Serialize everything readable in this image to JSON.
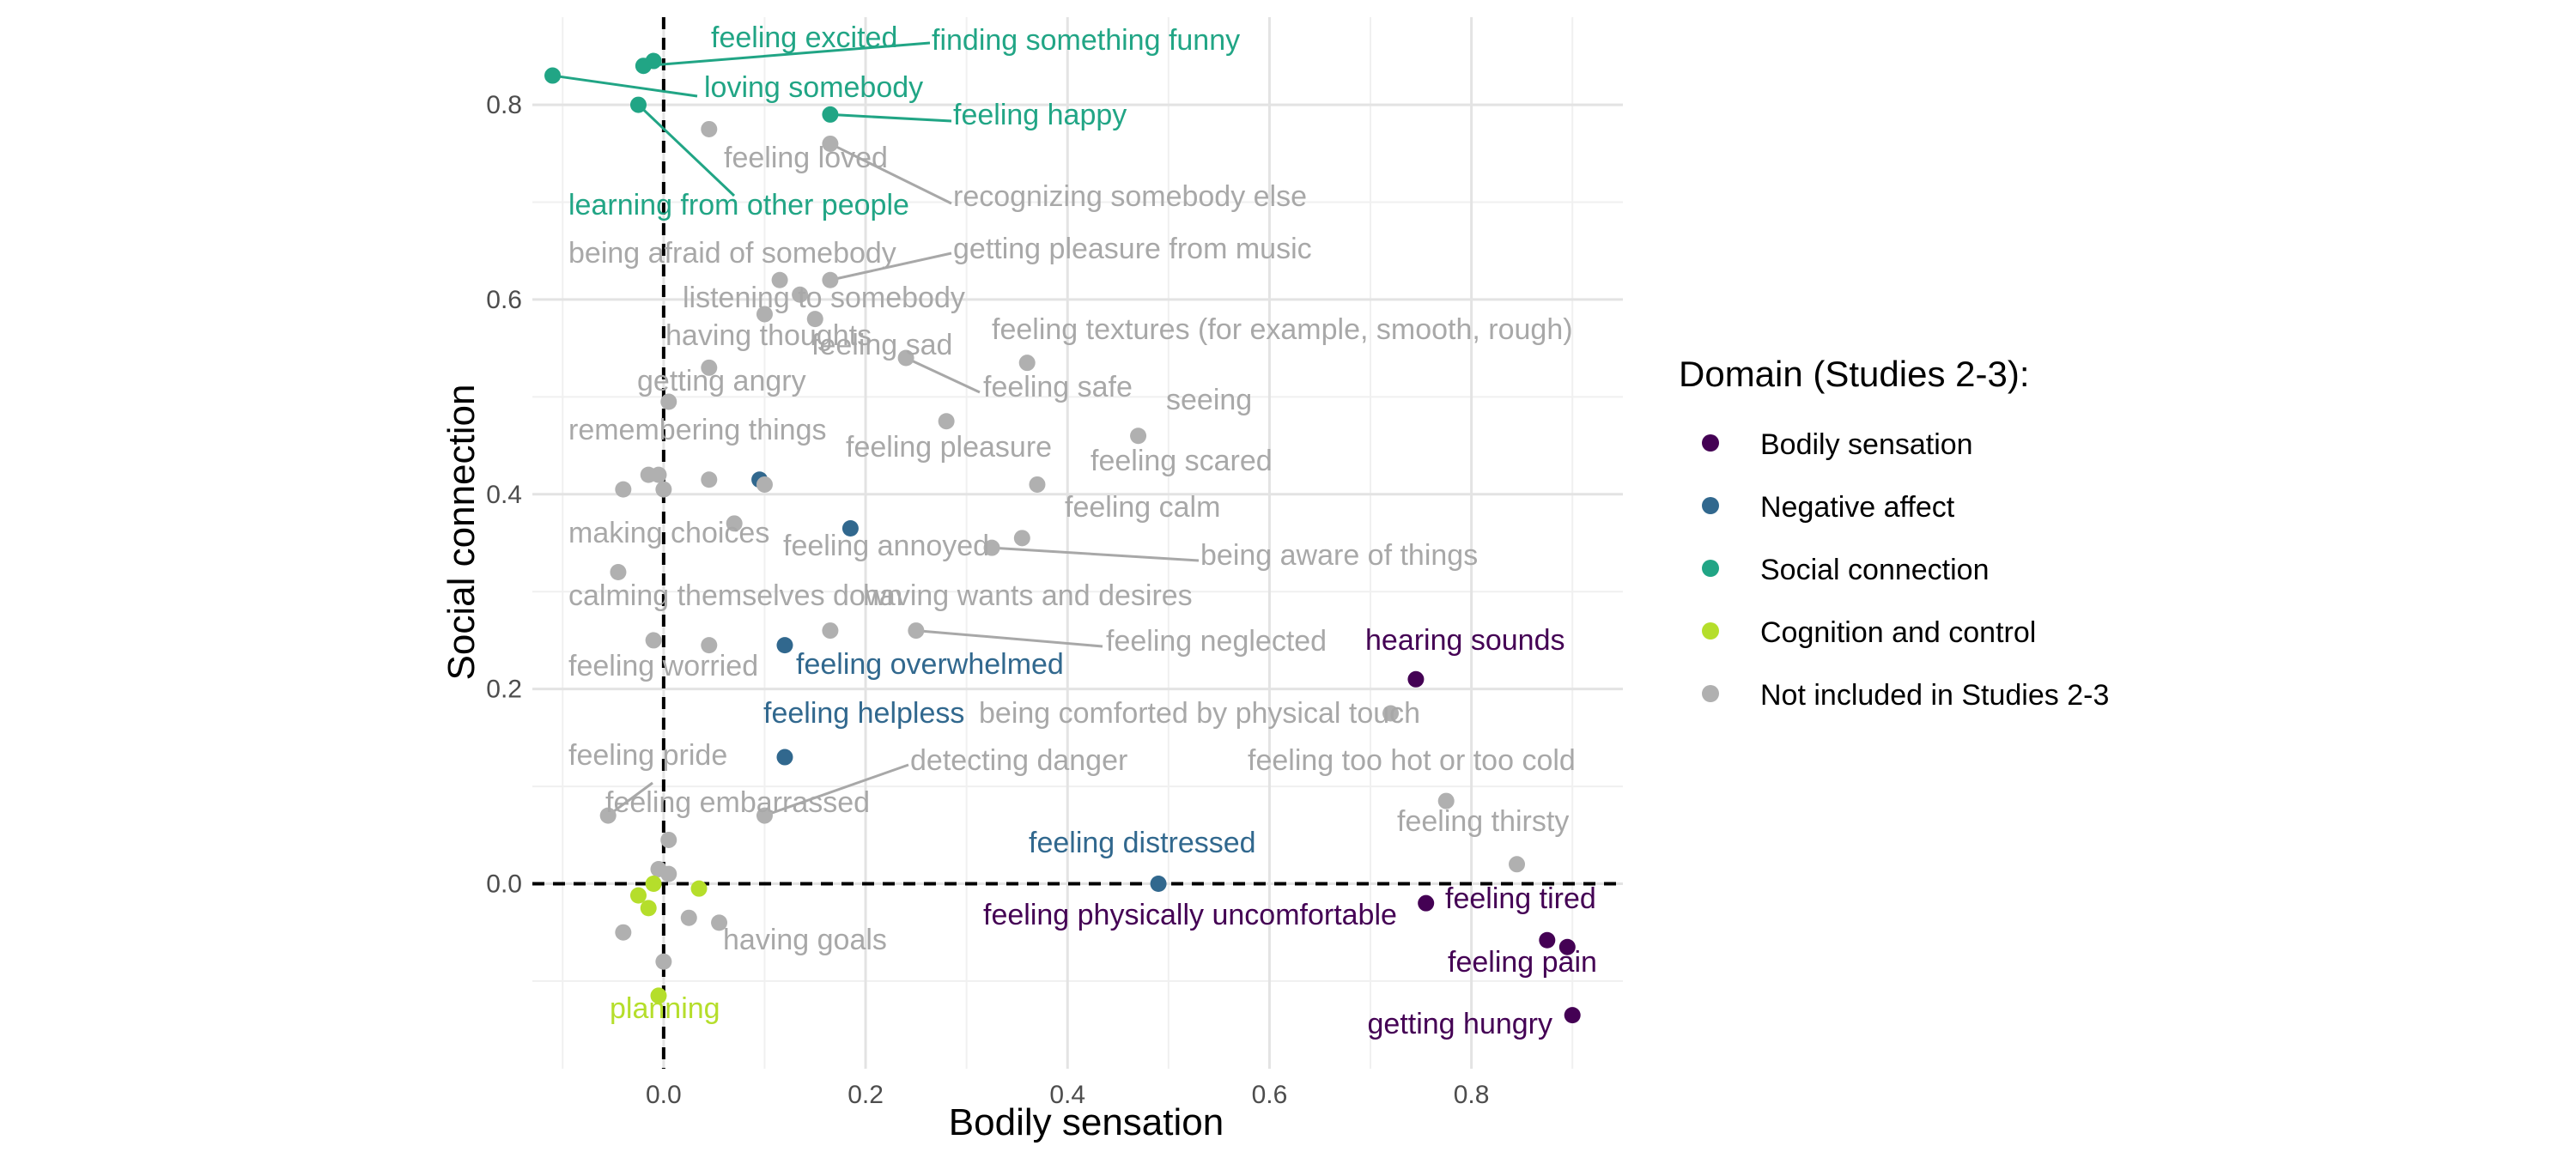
{
  "chart_data": {
    "type": "scatter",
    "xlabel": "Bodily sensation",
    "ylabel": "Social connection",
    "xlim": [
      -0.13,
      0.95
    ],
    "ylim": [
      -0.19,
      0.89
    ],
    "x_ticks": [
      "0.0",
      "0.2",
      "0.4",
      "0.6",
      "0.8"
    ],
    "x_tick_values": [
      0,
      0.2,
      0.4,
      0.6,
      0.8
    ],
    "y_ticks": [
      "0.0",
      "0.2",
      "0.4",
      "0.6",
      "0.8"
    ],
    "y_tick_values": [
      0,
      0.2,
      0.4,
      0.6,
      0.8
    ],
    "grid": true,
    "reference_lines": {
      "x": 0,
      "y": 0,
      "style": "dashed"
    },
    "legend": {
      "title": "Domain (Studies 2-3):",
      "placement": "right",
      "entries": [
        {
          "key": "bodily",
          "label": "Bodily sensation",
          "color": "#440154"
        },
        {
          "key": "negative",
          "label": "Negative affect",
          "color": "#31688e"
        },
        {
          "key": "social",
          "label": "Social connection",
          "color": "#21a585"
        },
        {
          "key": "cognition",
          "label": "Cognition and control",
          "color": "#b5de2b"
        },
        {
          "key": "other",
          "label": "Not included in Studies 2-3",
          "color": "#b0b0b0"
        }
      ]
    },
    "labels": [
      {
        "text": "feeling excited",
        "domain": "social",
        "x": -0.01,
        "y": 0.845
      },
      {
        "text": "finding something funny",
        "domain": "social",
        "x": -0.02,
        "y": 0.84
      },
      {
        "text": "loving somebody",
        "domain": "social",
        "x": -0.11,
        "y": 0.83
      },
      {
        "text": "feeling happy",
        "domain": "social",
        "x": 0.165,
        "y": 0.79
      },
      {
        "text": "learning from other people",
        "domain": "social",
        "x": -0.025,
        "y": 0.8
      },
      {
        "text": "feeling loved",
        "domain": "other",
        "x": 0.045,
        "y": 0.775
      },
      {
        "text": "recognizing somebody else",
        "domain": "other",
        "x": 0.165,
        "y": 0.76
      },
      {
        "text": "being afraid of somebody",
        "domain": "other",
        "x": 0.115,
        "y": 0.62
      },
      {
        "text": "getting pleasure from music",
        "domain": "other",
        "x": 0.165,
        "y": 0.62
      },
      {
        "text": "listening to somebody",
        "domain": "other",
        "x": 0.135,
        "y": 0.605
      },
      {
        "text": "having thoughts",
        "domain": "other",
        "x": 0.1,
        "y": 0.585
      },
      {
        "text": "feeling sad",
        "domain": "other",
        "x": 0.15,
        "y": 0.58
      },
      {
        "text": "feeling textures (for example, smooth, rough)",
        "domain": "other",
        "x": 0.36,
        "y": 0.535
      },
      {
        "text": "feeling safe",
        "domain": "other",
        "x": 0.24,
        "y": 0.54
      },
      {
        "text": "seeing",
        "domain": "other",
        "x": 0.47,
        "y": 0.46
      },
      {
        "text": "getting angry",
        "domain": "other",
        "x": 0.045,
        "y": 0.53
      },
      {
        "text": "feeling pleasure",
        "domain": "other",
        "x": 0.28,
        "y": 0.475
      },
      {
        "text": "feeling scared",
        "domain": "other",
        "x": 0.37,
        "y": 0.41
      },
      {
        "text": "remembering things",
        "domain": "other",
        "x": 0.005,
        "y": 0.495
      },
      {
        "text": "feeling calm",
        "domain": "other",
        "x": 0.355,
        "y": 0.355
      },
      {
        "text": "being aware of things",
        "domain": "other",
        "x": 0.325,
        "y": 0.345
      },
      {
        "text": "making choices",
        "domain": "other",
        "x": -0.045,
        "y": 0.32
      },
      {
        "text": "feeling annoyed",
        "domain": "other",
        "x": 0.07,
        "y": 0.37
      },
      {
        "text": "calming themselves down",
        "domain": "other",
        "x": -0.01,
        "y": 0.25
      },
      {
        "text": "having wants and desires",
        "domain": "other",
        "x": 0.165,
        "y": 0.26
      },
      {
        "text": "feeling neglected",
        "domain": "other",
        "x": 0.25,
        "y": 0.26
      },
      {
        "text": "hearing sounds",
        "domain": "bodily",
        "x": 0.745,
        "y": 0.21
      },
      {
        "text": "feeling worried",
        "domain": "other",
        "x": 0.045,
        "y": 0.245
      },
      {
        "text": "feeling overwhelmed",
        "domain": "negative",
        "x": 0.12,
        "y": 0.245
      },
      {
        "text": "feeling helpless",
        "domain": "negative",
        "x": 0.12,
        "y": 0.13
      },
      {
        "text": "being comforted by physical touch",
        "domain": "other",
        "x": 0.72,
        "y": 0.175
      },
      {
        "text": "feeling pride",
        "domain": "other",
        "x": -0.055,
        "y": 0.07
      },
      {
        "text": "detecting danger",
        "domain": "other",
        "x": 0.1,
        "y": 0.07
      },
      {
        "text": "feeling too hot or too cold",
        "domain": "other",
        "x": 0.775,
        "y": 0.085
      },
      {
        "text": "feeling embarrassed",
        "domain": "other",
        "x": 0.005,
        "y": 0.045
      },
      {
        "text": "feeling thirsty",
        "domain": "other",
        "x": 0.845,
        "y": 0.02
      },
      {
        "text": "feeling distressed",
        "domain": "negative",
        "x": 0.49,
        "y": 0.0
      },
      {
        "text": "feeling tired",
        "domain": "bodily",
        "x": 0.755,
        "y": -0.02
      },
      {
        "text": "feeling physically uncomfortable",
        "domain": "bodily",
        "x": 0.875,
        "y": -0.058
      },
      {
        "text": "feeling pain",
        "domain": "bodily",
        "x": 0.895,
        "y": -0.065
      },
      {
        "text": "having goals",
        "domain": "other",
        "x": 0.0,
        "y": -0.08
      },
      {
        "text": "getting hungry",
        "domain": "bodily",
        "x": 0.9,
        "y": -0.135
      },
      {
        "text": "planning",
        "domain": "cognition",
        "x": -0.005,
        "y": -0.115
      }
    ],
    "points": [
      {
        "domain": "social",
        "x": -0.01,
        "y": 0.845
      },
      {
        "domain": "social",
        "x": -0.02,
        "y": 0.84
      },
      {
        "domain": "social",
        "x": -0.11,
        "y": 0.83
      },
      {
        "domain": "social",
        "x": 0.165,
        "y": 0.79
      },
      {
        "domain": "social",
        "x": -0.025,
        "y": 0.8
      },
      {
        "domain": "other",
        "x": 0.045,
        "y": 0.775
      },
      {
        "domain": "other",
        "x": 0.165,
        "y": 0.76
      },
      {
        "domain": "other",
        "x": 0.115,
        "y": 0.62
      },
      {
        "domain": "other",
        "x": 0.165,
        "y": 0.62
      },
      {
        "domain": "other",
        "x": 0.135,
        "y": 0.605
      },
      {
        "domain": "other",
        "x": 0.1,
        "y": 0.585
      },
      {
        "domain": "other",
        "x": 0.15,
        "y": 0.58
      },
      {
        "domain": "other",
        "x": 0.36,
        "y": 0.535
      },
      {
        "domain": "other",
        "x": 0.24,
        "y": 0.54
      },
      {
        "domain": "other",
        "x": 0.47,
        "y": 0.46
      },
      {
        "domain": "other",
        "x": 0.045,
        "y": 0.53
      },
      {
        "domain": "other",
        "x": 0.28,
        "y": 0.475
      },
      {
        "domain": "other",
        "x": 0.37,
        "y": 0.41
      },
      {
        "domain": "other",
        "x": 0.005,
        "y": 0.495
      },
      {
        "domain": "other",
        "x": -0.04,
        "y": 0.405
      },
      {
        "domain": "other",
        "x": -0.015,
        "y": 0.42
      },
      {
        "domain": "other",
        "x": -0.005,
        "y": 0.42
      },
      {
        "domain": "other",
        "x": 0.0,
        "y": 0.405
      },
      {
        "domain": "other",
        "x": 0.045,
        "y": 0.415
      },
      {
        "domain": "negative",
        "x": 0.095,
        "y": 0.415
      },
      {
        "domain": "other",
        "x": 0.1,
        "y": 0.41
      },
      {
        "domain": "negative",
        "x": 0.185,
        "y": 0.365
      },
      {
        "domain": "other",
        "x": 0.355,
        "y": 0.355
      },
      {
        "domain": "other",
        "x": 0.325,
        "y": 0.345
      },
      {
        "domain": "other",
        "x": -0.045,
        "y": 0.32
      },
      {
        "domain": "other",
        "x": 0.07,
        "y": 0.37
      },
      {
        "domain": "other",
        "x": -0.01,
        "y": 0.25
      },
      {
        "domain": "other",
        "x": 0.165,
        "y": 0.26
      },
      {
        "domain": "other",
        "x": 0.25,
        "y": 0.26
      },
      {
        "domain": "bodily",
        "x": 0.745,
        "y": 0.21
      },
      {
        "domain": "other",
        "x": 0.045,
        "y": 0.245
      },
      {
        "domain": "negative",
        "x": 0.12,
        "y": 0.245
      },
      {
        "domain": "negative",
        "x": 0.12,
        "y": 0.13
      },
      {
        "domain": "other",
        "x": 0.72,
        "y": 0.175
      },
      {
        "domain": "other",
        "x": -0.055,
        "y": 0.07
      },
      {
        "domain": "other",
        "x": 0.1,
        "y": 0.07
      },
      {
        "domain": "other",
        "x": 0.775,
        "y": 0.085
      },
      {
        "domain": "other",
        "x": 0.005,
        "y": 0.045
      },
      {
        "domain": "other",
        "x": 0.845,
        "y": 0.02
      },
      {
        "domain": "negative",
        "x": 0.49,
        "y": 0.0
      },
      {
        "domain": "other",
        "x": -0.005,
        "y": 0.015
      },
      {
        "domain": "other",
        "x": 0.005,
        "y": 0.01
      },
      {
        "domain": "cognition",
        "x": -0.01,
        "y": 0.0
      },
      {
        "domain": "cognition",
        "x": 0.035,
        "y": -0.005
      },
      {
        "domain": "cognition",
        "x": -0.025,
        "y": -0.012
      },
      {
        "domain": "cognition",
        "x": -0.015,
        "y": -0.025
      },
      {
        "domain": "other",
        "x": 0.025,
        "y": -0.035
      },
      {
        "domain": "other",
        "x": 0.055,
        "y": -0.04
      },
      {
        "domain": "other",
        "x": -0.04,
        "y": -0.05
      },
      {
        "domain": "bodily",
        "x": 0.755,
        "y": -0.02
      },
      {
        "domain": "bodily",
        "x": 0.875,
        "y": -0.058
      },
      {
        "domain": "bodily",
        "x": 0.895,
        "y": -0.065
      },
      {
        "domain": "other",
        "x": 0.0,
        "y": -0.08
      },
      {
        "domain": "bodily",
        "x": 0.9,
        "y": -0.135
      },
      {
        "domain": "cognition",
        "x": -0.005,
        "y": -0.115
      }
    ]
  }
}
